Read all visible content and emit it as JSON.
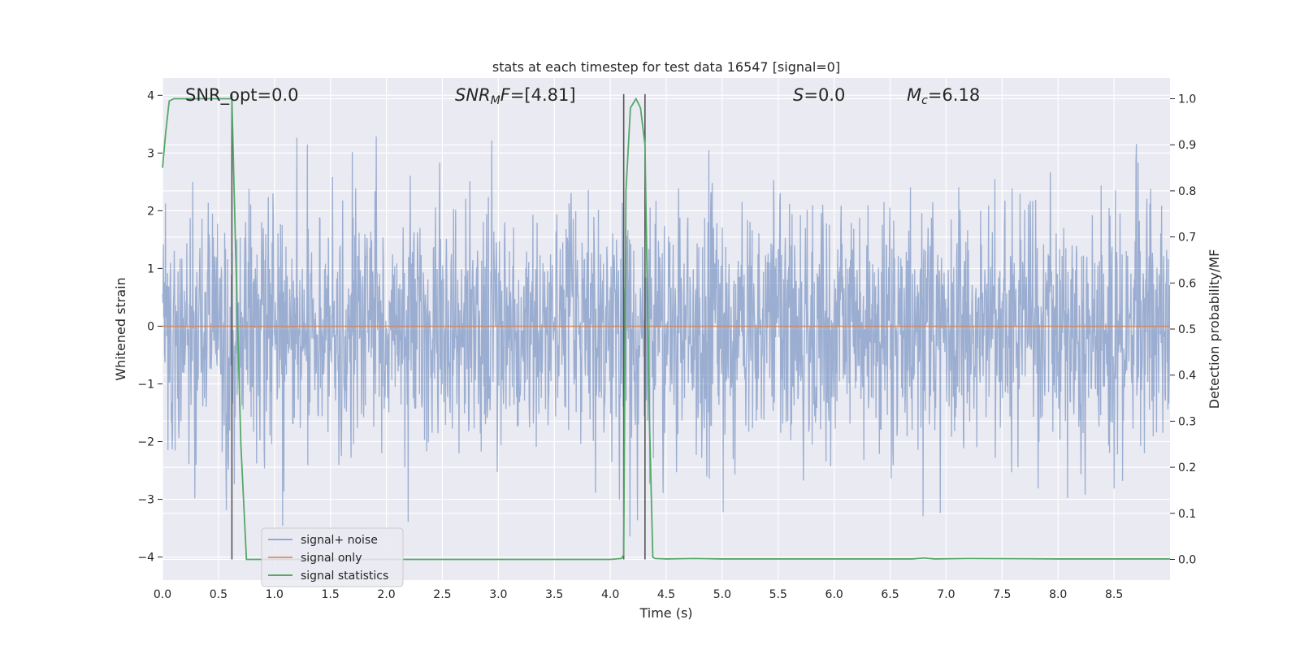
{
  "chart_data": {
    "type": "line",
    "title": "stats at each timestep for test data 16547 [signal=0]",
    "xlabel": "Time (s)",
    "ylabel": "Whitened strain",
    "y2label": "Detection probability/MF",
    "xlim": [
      0.0,
      9.0
    ],
    "ylim": [
      -4.4,
      4.3
    ],
    "y2lim": [
      -0.045,
      1.045
    ],
    "xticks": [
      "0.0",
      "0.5",
      "1.0",
      "1.5",
      "2.0",
      "2.5",
      "3.0",
      "3.5",
      "4.0",
      "4.5",
      "5.0",
      "5.5",
      "6.0",
      "6.5",
      "7.0",
      "7.5",
      "8.0",
      "8.5"
    ],
    "yticks": [
      "−4",
      "−3",
      "−2",
      "−1",
      "0",
      "1",
      "2",
      "3",
      "4"
    ],
    "y2ticks": [
      "0.0",
      "0.1",
      "0.2",
      "0.3",
      "0.4",
      "0.5",
      "0.6",
      "0.7",
      "0.8",
      "0.9",
      "1.0"
    ],
    "grid": true,
    "legend_position": "lower-left",
    "series": [
      {
        "name": "signal+ noise",
        "color": "#4c72b0",
        "note": "whitened strain, approx. gaussian noise, peaks to about ±4"
      },
      {
        "name": "signal only",
        "color": "#dd8452",
        "values_constant": 0.0
      },
      {
        "name": "signal statistics",
        "color": "#55a868",
        "axis": "right",
        "x": [
          0.0,
          0.03,
          0.06,
          0.1,
          0.15,
          0.3,
          0.5,
          0.6,
          0.62,
          0.65,
          0.7,
          0.75,
          0.8,
          1.0,
          2.0,
          3.0,
          3.5,
          4.0,
          4.1,
          4.12,
          4.14,
          4.18,
          4.23,
          4.27,
          4.31,
          4.35,
          4.38,
          4.4,
          4.5,
          4.75,
          5.0,
          6.0,
          6.7,
          6.8,
          6.9,
          7.2,
          8.0,
          9.0
        ],
        "y": [
          0.85,
          0.93,
          0.995,
          1.0,
          1.0,
          1.0,
          1.0,
          1.0,
          1.0,
          0.7,
          0.25,
          0.0,
          0.0,
          0.0,
          0.0,
          0.0,
          0.0,
          0.0,
          0.002,
          0.01,
          0.8,
          0.98,
          1.0,
          0.98,
          0.9,
          0.3,
          0.005,
          0.002,
          0.001,
          0.002,
          0.001,
          0.001,
          0.001,
          0.003,
          0.001,
          0.002,
          0.001,
          0.001
        ]
      }
    ],
    "vlines": [
      0.62,
      4.12,
      4.31
    ],
    "annotations": {
      "snr_opt": "SNR_opt=0.0",
      "snr_mf_main": "SNR",
      "snr_mf_sub": "M",
      "snr_mf_f": "F",
      "snr_mf_rest": "=[4.81]",
      "s_italic": "S",
      "s_rest": "=0.0",
      "mc_italic": "M",
      "mc_sub": "c",
      "mc_rest": "=6.18"
    },
    "colors": {
      "plot_background": "#eaeaf2",
      "grid": "#ffffff",
      "noise": "#4c72b0",
      "signal_only": "#dd8452",
      "statistics": "#55a868",
      "vline": "#555555"
    }
  }
}
